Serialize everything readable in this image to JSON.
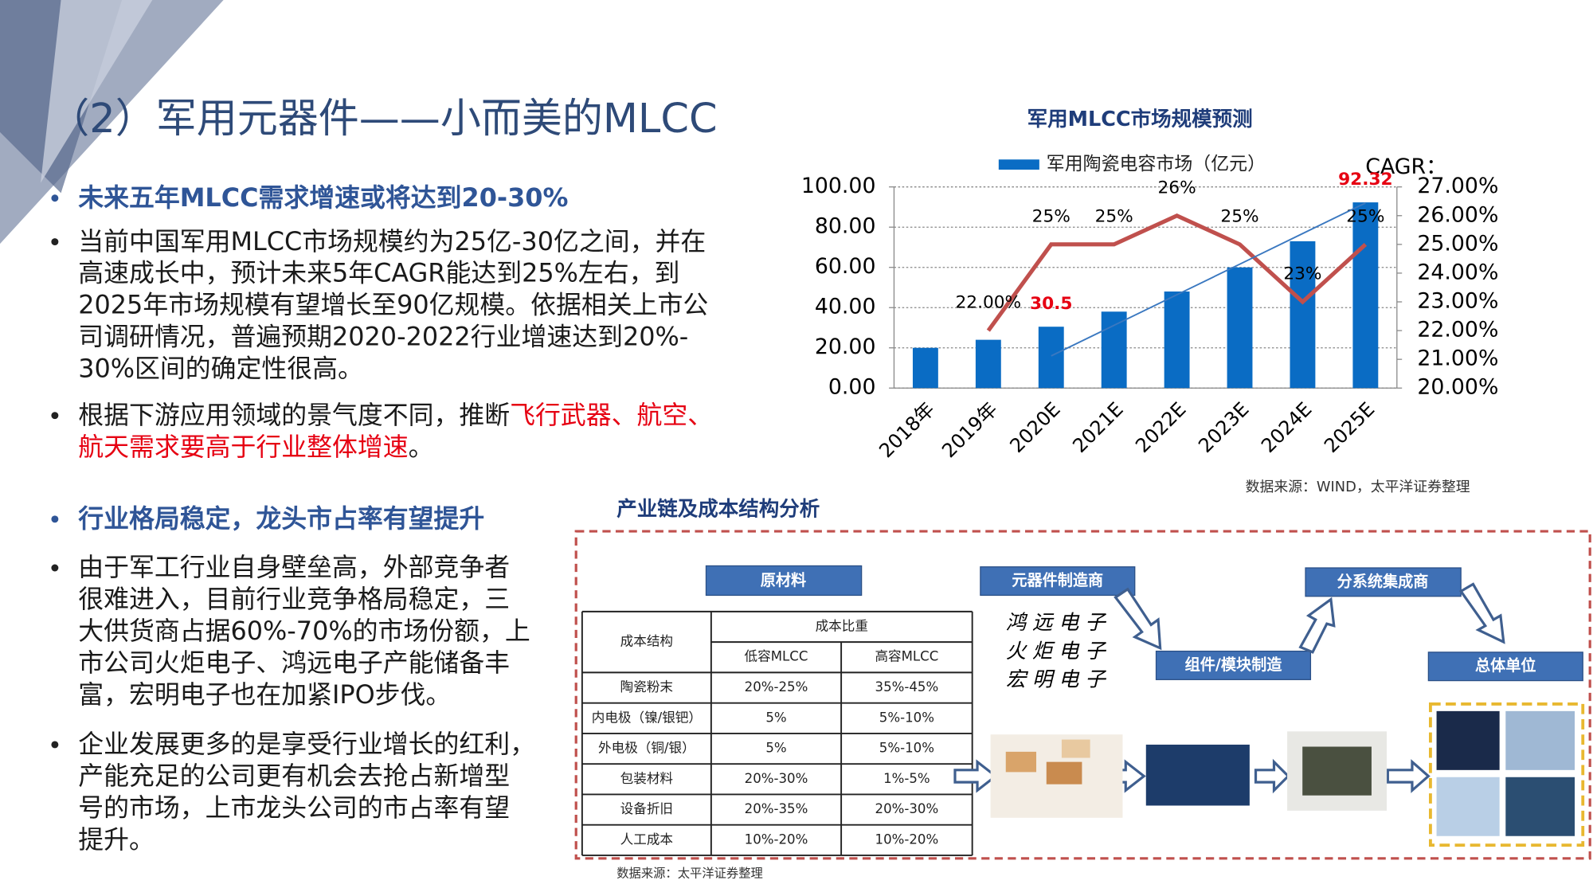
{
  "title": "（2）军用元器件——小而美的MLCC",
  "bullets": [
    {
      "heading": true,
      "lines": [
        [
          {
            "text": "未来五年MLCC需求增速或将达到20-30%"
          }
        ]
      ]
    },
    {
      "lines": [
        [
          {
            "text": "当前中国军用MLCC市场规模约为25亿-30亿之间，并在"
          }
        ],
        [
          {
            "text": "高速成长中，预计未来5年CAGR能达到25%左右，到"
          }
        ],
        [
          {
            "text": "2025年市场规模有望增长至90亿规模。依据相关上市公"
          }
        ],
        [
          {
            "text": "司调研情况，普遍预期2020-2022行业增速达到20%-"
          }
        ],
        [
          {
            "text": "30%区间的确定性很高。"
          }
        ]
      ]
    },
    {
      "lines": [
        [
          {
            "text": "根据下游应用领域的景气度不同，推断"
          },
          {
            "text": "飞行武器、航空、",
            "color": "#e60012"
          }
        ],
        [
          {
            "text": "航天需求要高于行业整体增速",
            "color": "#e60012"
          },
          {
            "text": "。"
          }
        ]
      ]
    },
    {
      "heading": true,
      "lines": [
        [
          {
            "text": "行业格局稳定，龙头市占率有望提升"
          }
        ]
      ]
    },
    {
      "lines": [
        [
          {
            "text": "由于军工行业自身壁垒高，外部竞争者"
          }
        ],
        [
          {
            "text": "很难进入，目前行业竞争格局稳定，三"
          }
        ],
        [
          {
            "text": "大供货商占据60%-70%的市场份额，上"
          }
        ],
        [
          {
            "text": "市公司火炬电子、鸿远电子产能储备丰"
          }
        ],
        [
          {
            "text": "富，宏明电子也在加紧IPO步伐。"
          }
        ]
      ]
    },
    {
      "lines": [
        [
          {
            "text": "企业发展更多的是享受行业增长的红利，"
          }
        ],
        [
          {
            "text": "产能充足的公司更有机会去抢占新增型"
          }
        ],
        [
          {
            "text": "号的市场，上市龙头公司的市占率有望"
          }
        ],
        [
          {
            "text": "提升。"
          }
        ]
      ]
    }
  ],
  "chart_data": {
    "type": "bar",
    "title": "军用MLCC市场规模预测",
    "categories": [
      "2018年",
      "2019年",
      "2020E",
      "2021E",
      "2022E",
      "2023E",
      "2024E",
      "2025E"
    ],
    "series": [
      {
        "name": "军用陶瓷电容市场（亿元）",
        "color": "#0a6cc4",
        "values": [
          20,
          24,
          30.5,
          38,
          48,
          60,
          73,
          92.32
        ],
        "value_labels": [
          null,
          null,
          "30.5",
          null,
          null,
          null,
          null,
          "92.32"
        ],
        "label_color": "#e60012"
      },
      {
        "type": "line",
        "axis": "y2",
        "color": "#c0504d",
        "values": [
          null,
          22,
          25,
          25,
          26,
          25,
          23,
          25
        ],
        "value_labels": [
          null,
          "22.00%",
          "25%",
          "25%",
          "26%",
          "25%",
          "23%",
          "25%"
        ]
      }
    ],
    "trendline": {
      "color": "#3a78c0",
      "values": [
        null,
        null,
        16,
        31.2,
        46.4,
        61.6,
        76.8,
        92
      ]
    },
    "ylim": [
      0,
      100
    ],
    "yticks": [
      {
        "value": 0,
        "label": "0.00"
      },
      {
        "value": 20,
        "label": "20.00"
      },
      {
        "value": 40,
        "label": "40.00"
      },
      {
        "value": 60,
        "label": "60.00"
      },
      {
        "value": 80,
        "label": "80.00"
      },
      {
        "value": 100,
        "label": "100.00"
      }
    ],
    "y2label": "CAGR：",
    "y2lim": [
      20,
      27
    ],
    "y2ticks": [
      {
        "value": 20,
        "label": "20.00%"
      },
      {
        "value": 21,
        "label": "21.00%"
      },
      {
        "value": 22,
        "label": "22.00%"
      },
      {
        "value": 23,
        "label": "23.00%"
      },
      {
        "value": 24,
        "label": "24.00%"
      },
      {
        "value": 25,
        "label": "25.00%"
      },
      {
        "value": 26,
        "label": "26.00%"
      },
      {
        "value": 27,
        "label": "27.00%"
      }
    ],
    "grid": true
  },
  "chart_source": "数据来源：WIND，太平洋证券整理",
  "section_title": "产业链及成本结构分析",
  "table": {
    "header": [
      "成本结构",
      "成本比重",
      "低容MLCC",
      "高容MLCC"
    ],
    "rows": [
      [
        "陶瓷粉末",
        "20%-25%",
        "35%-45%"
      ],
      [
        "内电极（镍/银钯）",
        "5%",
        "5%-10%"
      ],
      [
        "外电极（铜/银）",
        "5%",
        "5%-10%"
      ],
      [
        "包装材料",
        "20%-30%",
        "1%-5%"
      ],
      [
        "设备折旧",
        "20%-35%",
        "20%-30%"
      ],
      [
        "人工成本",
        "10%-20%",
        "10%-20%"
      ]
    ]
  },
  "diagram": {
    "boxes": [
      "原材料",
      "元器件制造商",
      "组件/模块制造",
      "分系统集成商",
      "总体单位"
    ],
    "companies": [
      "鸿远电子",
      "火炬电子",
      "宏明电子"
    ]
  },
  "source": "数据来源：太平洋证券整理"
}
